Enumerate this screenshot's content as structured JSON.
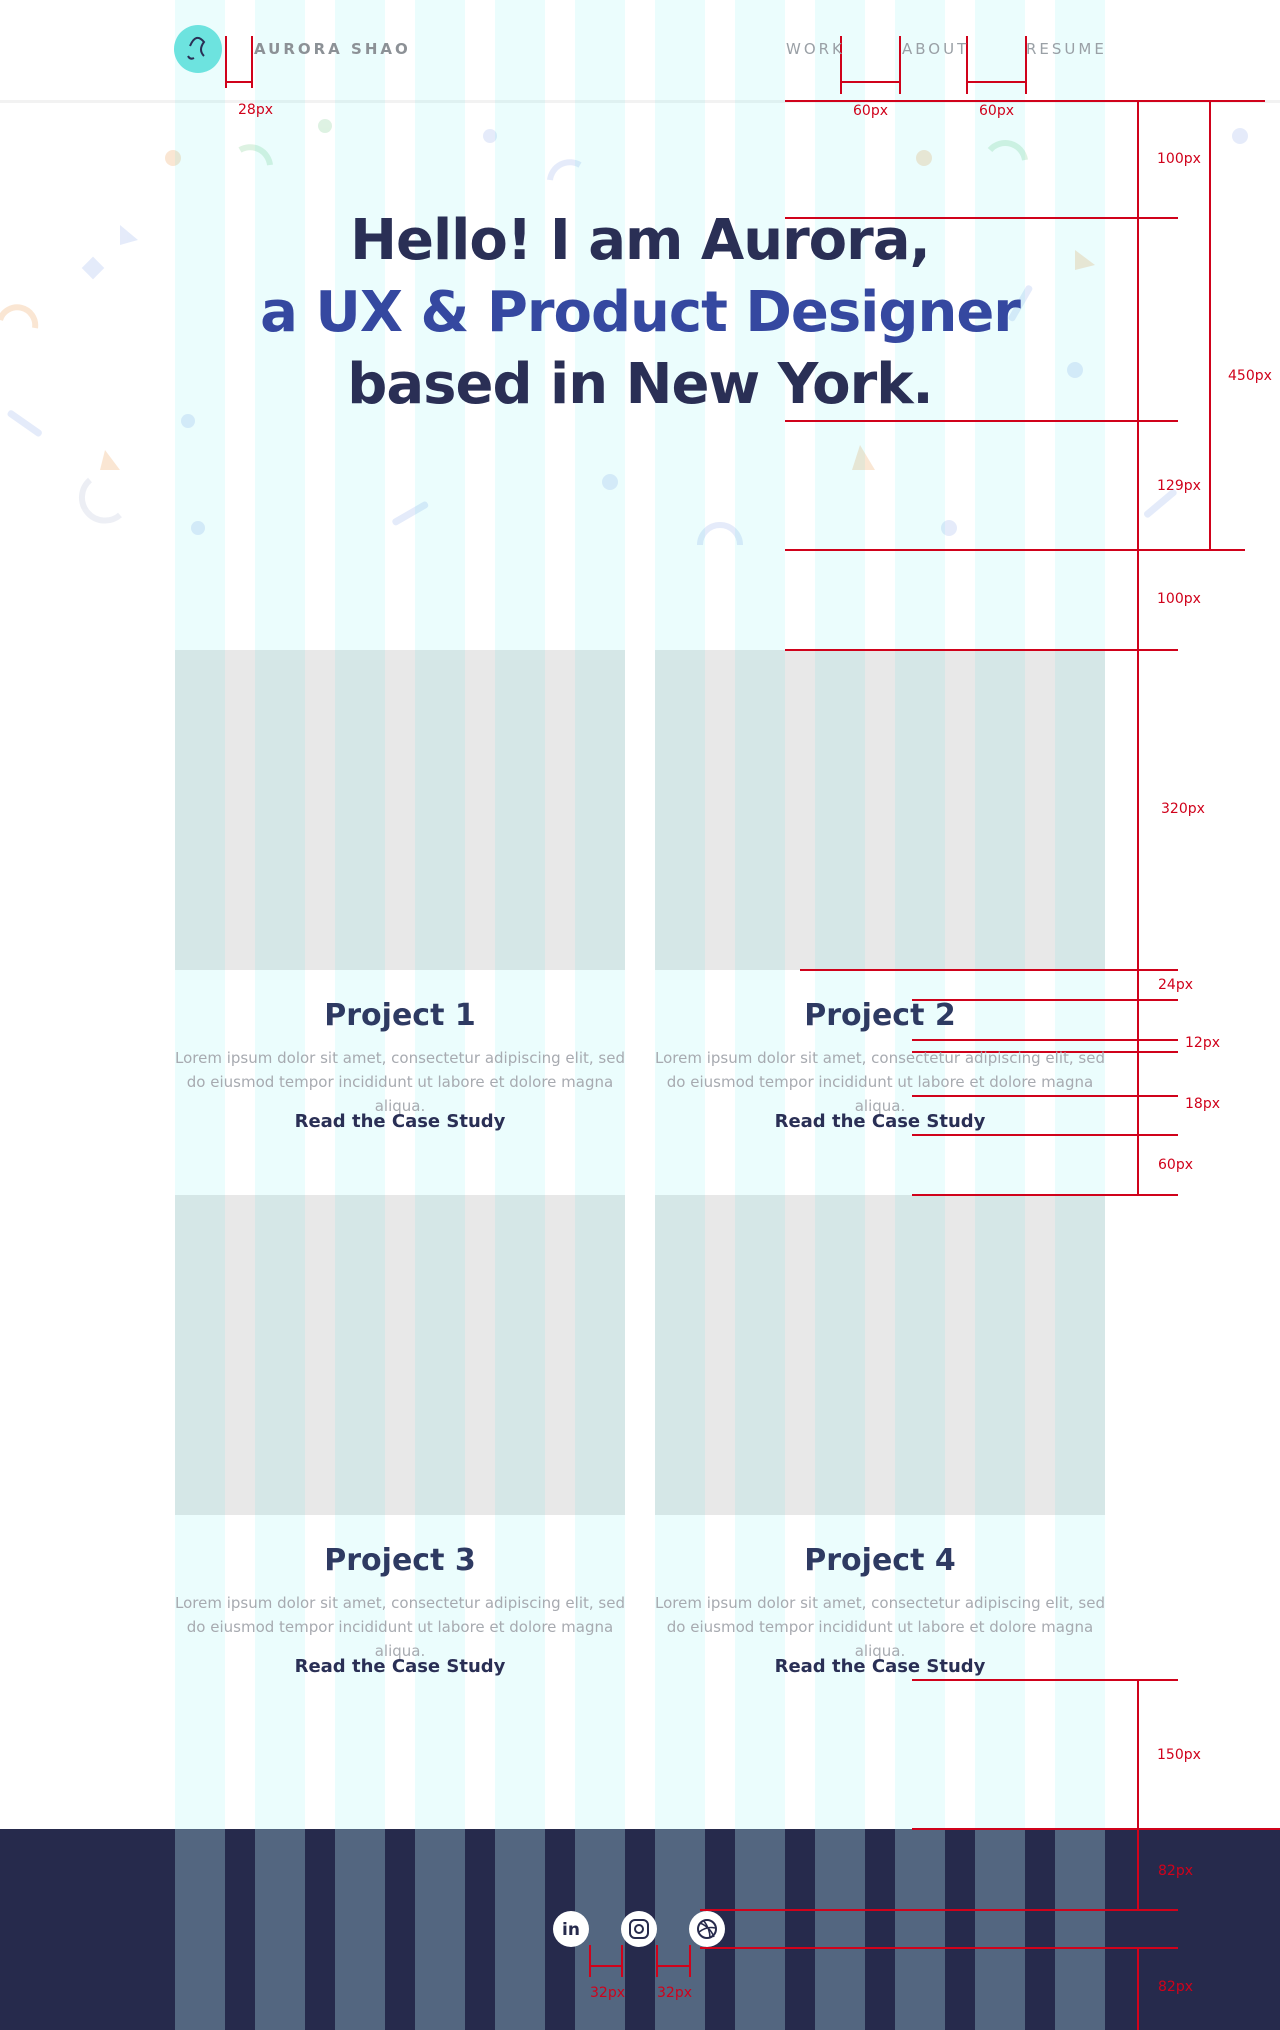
{
  "header": {
    "logo_text": "AURORA SHAO",
    "nav": [
      "WORK",
      "ABOUT",
      "RESUME"
    ]
  },
  "hero": {
    "lines": [
      "Hello! I am Aurora,",
      "a UX & Product Designer",
      "based in New York."
    ]
  },
  "projects": [
    {
      "title": "Project 1",
      "description": "Lorem ipsum dolor sit amet, consectetur adipiscing elit, sed do eiusmod tempor incididunt ut labore et dolore magna aliqua.",
      "link": "Read the Case Study"
    },
    {
      "title": "Project 2",
      "description": "Lorem ipsum dolor sit amet, consectetur adipiscing elit, sed do eiusmod tempor incididunt ut labore et dolore magna aliqua.",
      "link": "Read the Case Study"
    },
    {
      "title": "Project 3",
      "description": "Lorem ipsum dolor sit amet, consectetur adipiscing elit, sed do eiusmod tempor incididunt ut labore et dolore magna aliqua.",
      "link": "Read the Case Study"
    },
    {
      "title": "Project 4",
      "description": "Lorem ipsum dolor sit amet, consectetur adipiscing elit, sed do eiusmod tempor incididunt ut labore et dolore magna aliqua.",
      "link": "Read the Case Study"
    }
  ],
  "footer": {
    "linkedin_icon": "in"
  },
  "annotations": [
    "28px",
    "60px",
    "60px",
    "100px",
    "450px",
    "129px",
    "100px",
    "320px",
    "24px",
    "12px",
    "18px",
    "60px",
    "150px",
    "82px",
    "82px",
    "32px",
    "32px"
  ]
}
